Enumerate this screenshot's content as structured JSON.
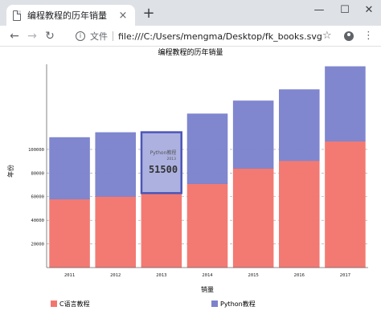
{
  "browser": {
    "tab_title": "编程教程的历年销量",
    "tab_close": "×",
    "new_tab": "+",
    "minimize": "—",
    "maximize": "☐",
    "close": "✕",
    "back": "←",
    "forward": "→",
    "reload": "↻",
    "info": "i",
    "scheme_label": "文件",
    "url": "file:///C:/Users/mengma/Desktop/fk_books.svg",
    "star": "☆",
    "menu": "⋮"
  },
  "chart_data": {
    "type": "bar",
    "stacked": true,
    "title": "编程教程的历年销量",
    "xlabel": "销量",
    "ylabel": "年份",
    "categories": [
      "2011",
      "2012",
      "2013",
      "2014",
      "2015",
      "2016",
      "2017"
    ],
    "series": [
      {
        "name": "C语言教程",
        "values": [
          58000,
          60200,
          63000,
          71000,
          84000,
          90500,
          107000
        ],
        "color": "#f3766e"
      },
      {
        "name": "Python教程",
        "values": [
          52000,
          54000,
          51500,
          59000,
          57000,
          60000,
          63000
        ],
        "color": "#7c83cd"
      }
    ],
    "yticks": [
      20000,
      40000,
      60000,
      80000,
      100000
    ],
    "ylim": [
      0,
      172000
    ],
    "grid": "y-dashed",
    "legend_position": "bottom",
    "tooltip": {
      "category": "2013",
      "series": "Python教程",
      "value": "51500"
    }
  }
}
